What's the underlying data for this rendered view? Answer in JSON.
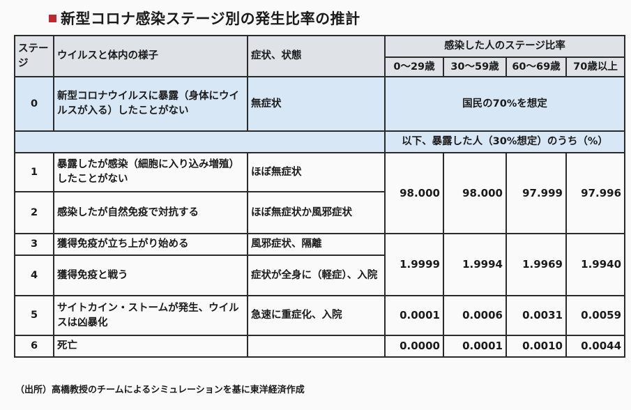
{
  "title": "新型コロナ感染ステージ別の発生比率の推計",
  "headers": {
    "stage": "ステージ",
    "body": "ウイルスと体内の様子",
    "symptom": "症状、状態",
    "ratio_group": "感染した人のステージ比率",
    "ages": [
      "0～29歳",
      "30～59歳",
      "60～69歳",
      "70歳以上"
    ]
  },
  "stage0": {
    "num": "0",
    "desc": "新型コロナウイルスに暴露（身体にウイルスが入る）したことがない",
    "symptom": "無症状",
    "note": "国民の70%を想定"
  },
  "subheader": "以下、暴露した人（30%想定）のうち（%）",
  "rows": [
    {
      "num": "1",
      "desc": "暴露したが感染（細胞に入り込み増殖）したことがない",
      "symptom": "ほぼ無症状"
    },
    {
      "num": "2",
      "desc": "感染したが自然免疫で対抗する",
      "symptom": "ほぼ無症状か風邪症状"
    },
    {
      "num": "3",
      "desc": "獲得免疫が立ち上がり始める",
      "symptom": "風邪症状、隔離"
    },
    {
      "num": "4",
      "desc": "獲得免疫と戦う",
      "symptom": "症状が全身に（軽症）、入院"
    },
    {
      "num": "5",
      "desc": "サイトカイン・ストームが発生、ウイルスは凶暴化",
      "symptom": "急速に重症化、入院"
    },
    {
      "num": "6",
      "desc": "死亡",
      "symptom": ""
    }
  ],
  "values": {
    "stage12": [
      "98.000",
      "98.000",
      "97.999",
      "97.996"
    ],
    "stage34": [
      "1.9999",
      "1.9994",
      "1.9969",
      "1.9940"
    ],
    "stage5": [
      "0.0001",
      "0.0006",
      "0.0031",
      "0.0059"
    ],
    "stage6": [
      "0.0000",
      "0.0001",
      "0.0010",
      "0.0044"
    ]
  },
  "source": "（出所）高橋教授のチームによるシミュレーションを基に東洋経済作成"
}
